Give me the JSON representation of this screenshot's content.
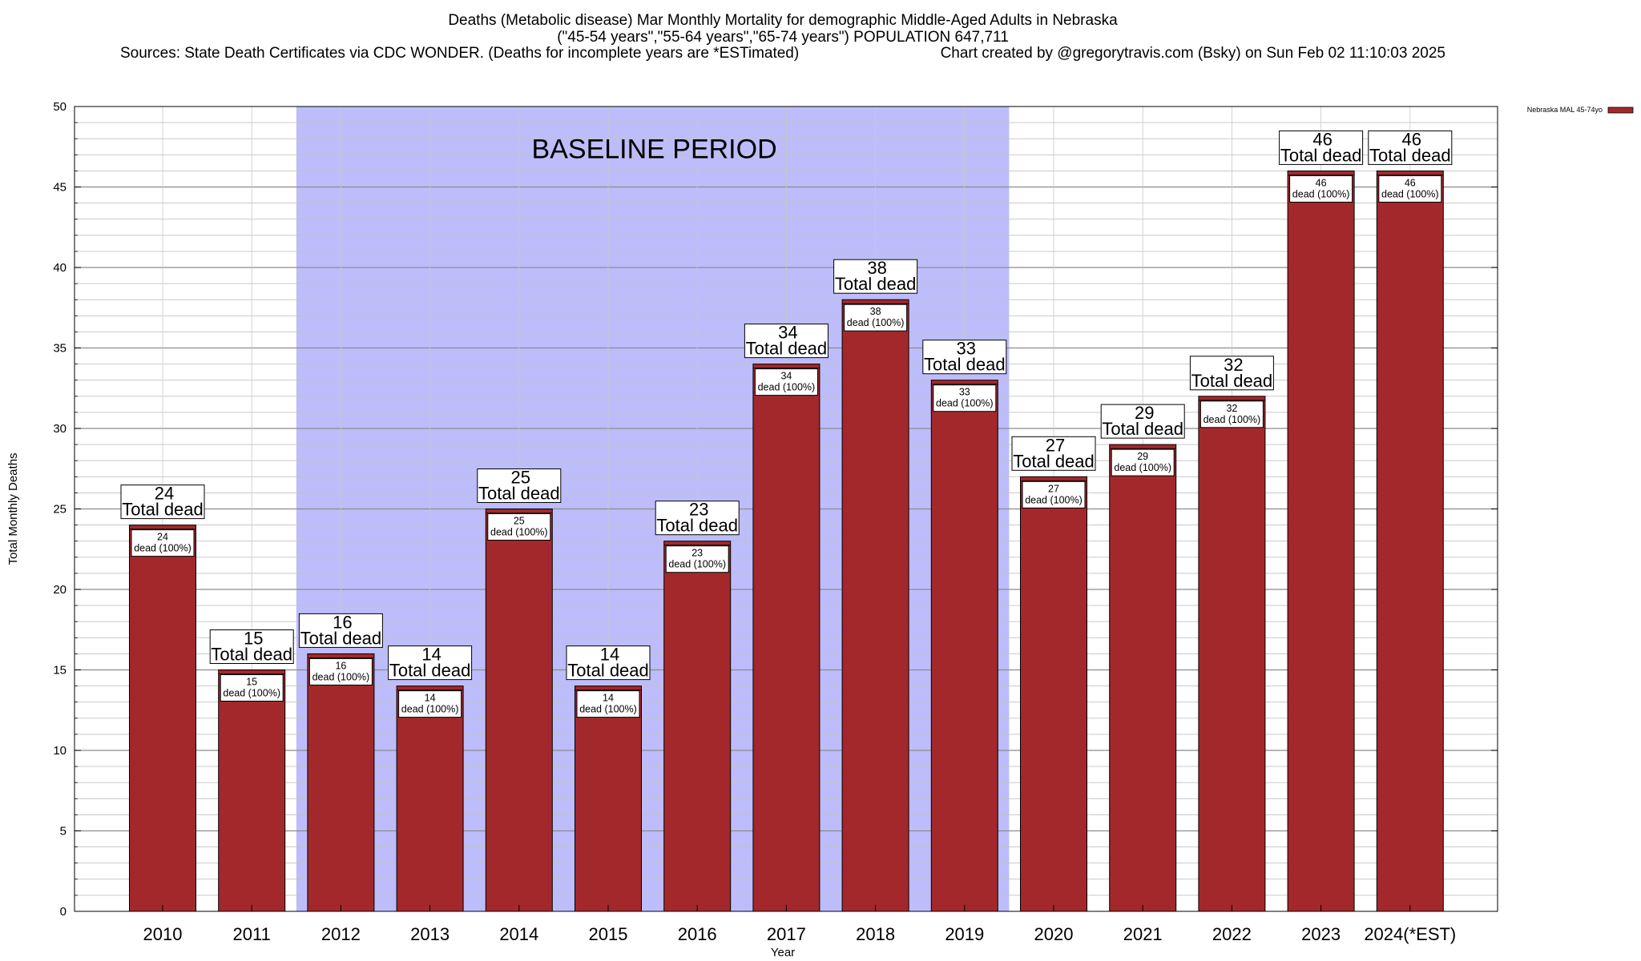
{
  "chart_data": {
    "type": "bar",
    "title_lines": [
      "Deaths (Metabolic disease) Mar Monthly Mortality for demographic Middle-Aged Adults in Nebraska",
      "(\"45-54 years\",\"55-64 years\",\"65-74 years\") POPULATION 647,711",
      "Sources: State Death Certificates via CDC WONDER. (Deaths for incomplete years are *ESTimated)",
      "Chart created by @gregorytravis.com (Bsky) on Sun Feb 02 11:10:03 2025"
    ],
    "xlabel": "Year",
    "ylabel": "Total Monthly Deaths",
    "ylim": [
      0,
      50
    ],
    "yticks": [
      0,
      5,
      10,
      15,
      20,
      25,
      30,
      35,
      40,
      45,
      50
    ],
    "categories": [
      "2010",
      "2011",
      "2012",
      "2013",
      "2014",
      "2015",
      "2016",
      "2017",
      "2018",
      "2019",
      "2020",
      "2021",
      "2022",
      "2023",
      "2024(*EST)"
    ],
    "series": [
      {
        "name": "Nebraska MAL 45-74yo",
        "color": "#a3282b",
        "values": [
          24,
          15,
          16,
          14,
          25,
          14,
          23,
          34,
          38,
          33,
          27,
          29,
          32,
          46,
          46
        ]
      }
    ],
    "shaded_region": {
      "label": "BASELINE PERIOD",
      "from_category": "2012",
      "to_category": "2019",
      "color": "#bdbdfb"
    },
    "bar_label_text": "Total dead",
    "bar_inner_label_text": "dead (100%)",
    "grid": true,
    "legend_position": "top-right"
  }
}
